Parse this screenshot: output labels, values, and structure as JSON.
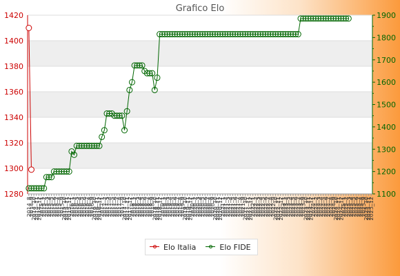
{
  "chart_data": {
    "type": "line",
    "title": "Grafico Elo",
    "colors": {
      "italia": "#cc0000",
      "fide": "#006600"
    },
    "left_axis": {
      "ylim": [
        1280,
        1420
      ],
      "ticks": [
        "1280",
        "1300",
        "1320",
        "1340",
        "1360",
        "1380",
        "1400",
        "1420"
      ]
    },
    "right_axis": {
      "ylim": [
        1100,
        1900
      ],
      "ticks": [
        "1100",
        "1200",
        "1300",
        "1400",
        "1500",
        "1600",
        "1700",
        "1800",
        "1900"
      ]
    },
    "x_labels": [
      "2014_8",
      "2014_9",
      "2014_10",
      "2014_11",
      "2014_12",
      "2015_1",
      "2015_2",
      "2015_3",
      "2015_4",
      "2015_5",
      "2015_6",
      "2015_7",
      "2015_8",
      "2015_9",
      "2015_10",
      "2015_11",
      "2015_12",
      "2016_1",
      "2016_2",
      "2016_3",
      "2016_4",
      "2016_5",
      "2016_6",
      "2016_7",
      "2016_8",
      "2016_9",
      "2016_10",
      "2016_11",
      "2016_12",
      "2017_1",
      "2017_2",
      "2017_3",
      "2017_4",
      "2017_5",
      "2017_6",
      "2017_7",
      "2017_8",
      "2017_9",
      "2017_10",
      "2017_11",
      "2017_12",
      "2018_1",
      "2018_2",
      "2018_3",
      "2018_4",
      "2018_5",
      "2018_6",
      "2018_7",
      "2018_8",
      "2018_9",
      "2018_10",
      "2018_11",
      "2018_12",
      "2019_1",
      "2019_2",
      "2019_3",
      "2019_4",
      "2019_5",
      "2019_6",
      "2019_7",
      "2019_8",
      "2019_9",
      "2019_10",
      "2019_11",
      "2019_12",
      "2020_1",
      "2020_2",
      "2020_3",
      "2020_4",
      "2020_5",
      "2020_6",
      "2020_7",
      "2020_8",
      "2020_9",
      "2020_10",
      "2020_11",
      "2020_12",
      "2021_1",
      "2021_2",
      "2021_3",
      "2021_4",
      "2021_5",
      "2021_6",
      "2021_7",
      "2021_8",
      "2021_9",
      "2021_10",
      "2021_11",
      "2021_12",
      "2022_1",
      "2022_2",
      "2022_3",
      "2022_4",
      "2022_5",
      "2022_6",
      "2022_7",
      "2022_8",
      "2022_9",
      "2022_10",
      "2022_11",
      "2022_12",
      "2023_1",
      "2023_2",
      "2023_3",
      "2023_4",
      "2023_5",
      "2023_6",
      "2023_7",
      "2023_8",
      "2023_9",
      "2023_10",
      "2023_11",
      "2023_12",
      "2024_1",
      "2024_2",
      "2024_3",
      "2024_4",
      "2024_5",
      "2024_6",
      "2024_7",
      "2024_8",
      "2024_9",
      "2024_10",
      "2024_11",
      "2024_12",
      "2025_1",
      "2025_2",
      "2025_3",
      "2025_4",
      "2025_5",
      "2025_6",
      "2025_7",
      "2025_8",
      "2025_9",
      "2025_10",
      "2025_11",
      "2025_12"
    ],
    "series": [
      {
        "name": "Elo Italia",
        "axis": "left",
        "values": [
          1410,
          1299
        ]
      },
      {
        "name": "Elo FIDE",
        "axis": "right",
        "values": [
          1125,
          1125,
          1125,
          1125,
          1125,
          1125,
          1125,
          1175,
          1175,
          1175,
          1200,
          1200,
          1200,
          1200,
          1200,
          1200,
          1200,
          1290,
          1275,
          1315,
          1315,
          1315,
          1315,
          1315,
          1315,
          1315,
          1315,
          1315,
          1315,
          1355,
          1385,
          1460,
          1460,
          1460,
          1450,
          1450,
          1450,
          1450,
          1385,
          1470,
          1565,
          1600,
          1675,
          1675,
          1675,
          1675,
          1650,
          1640,
          1640,
          1640,
          1565,
          1620,
          1815,
          1815,
          1815,
          1815,
          1815,
          1815,
          1815,
          1815,
          1815,
          1815,
          1815,
          1815,
          1815,
          1815,
          1815,
          1815,
          1815,
          1815,
          1815,
          1815,
          1815,
          1815,
          1815,
          1815,
          1815,
          1815,
          1815,
          1815,
          1815,
          1815,
          1815,
          1815,
          1815,
          1815,
          1815,
          1815,
          1815,
          1815,
          1815,
          1815,
          1815,
          1815,
          1815,
          1815,
          1815,
          1815,
          1815,
          1815,
          1815,
          1815,
          1815,
          1815,
          1815,
          1815,
          1815,
          1815,
          1885,
          1885,
          1885,
          1885,
          1885,
          1885,
          1885,
          1885,
          1885,
          1885,
          1885,
          1885,
          1885,
          1885,
          1885,
          1885,
          1885,
          1885,
          1885,
          1885
        ]
      }
    ],
    "legend": {
      "position": "bottom",
      "entries": [
        "Elo Italia",
        "Elo FIDE"
      ]
    }
  }
}
